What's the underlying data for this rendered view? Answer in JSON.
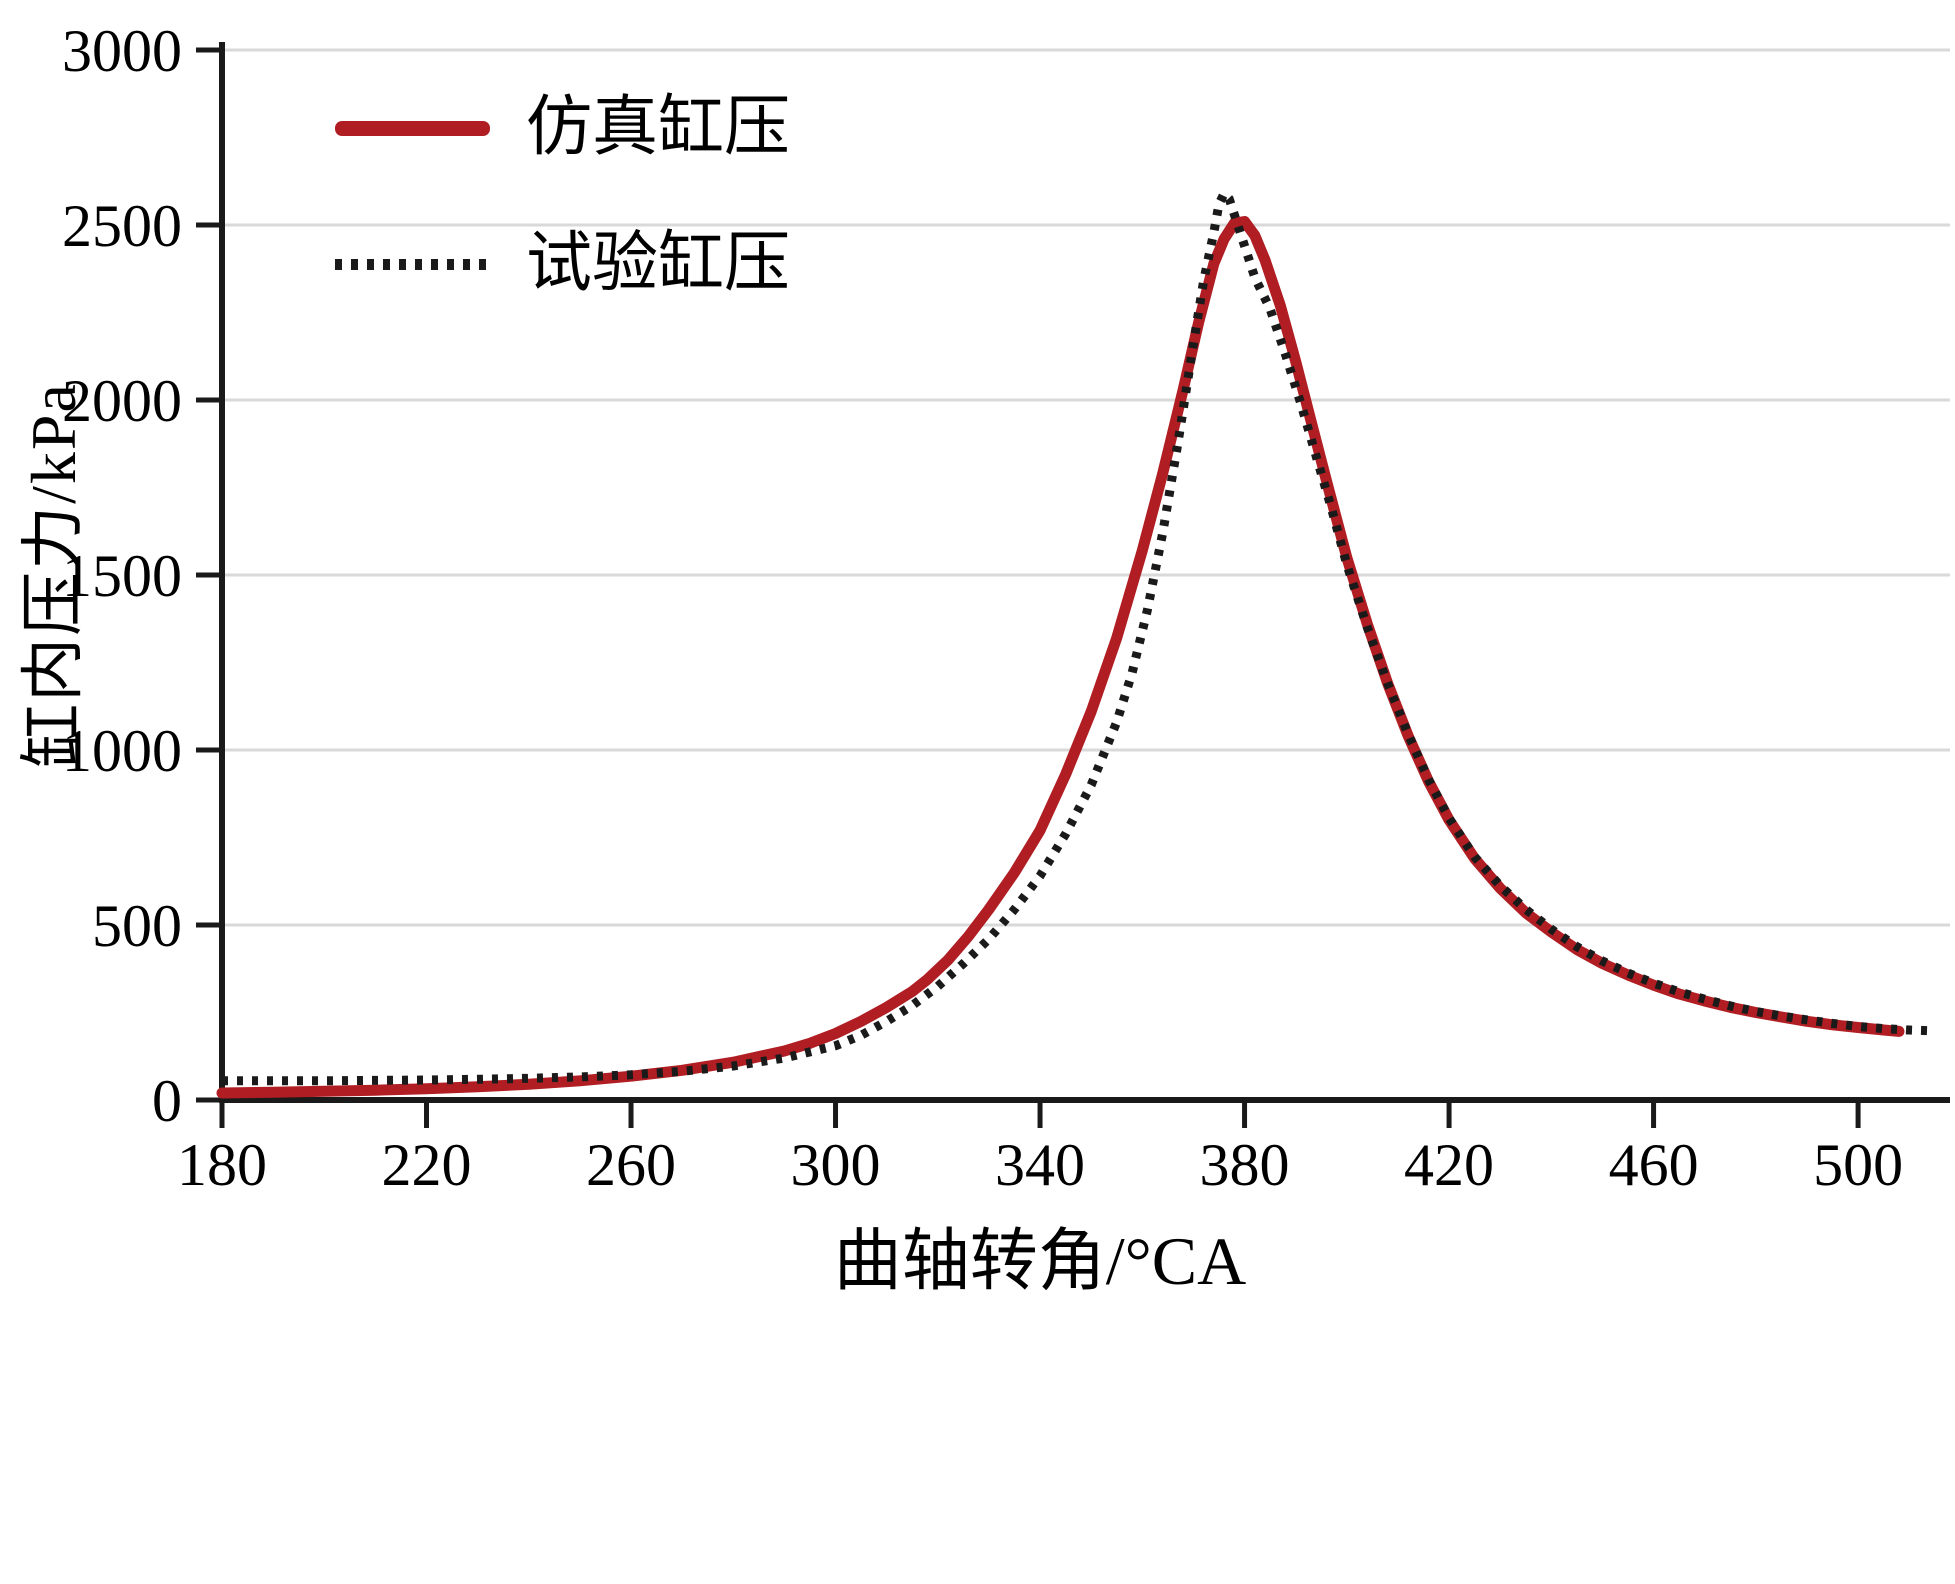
{
  "figure": {
    "background": "#ffffff"
  },
  "colors": {
    "grid": "#d9d9d9",
    "axis": "#1a1a1a",
    "text": "#000000",
    "simulated": "#b01e23",
    "experimental": "#1a1a1a"
  },
  "chart_data": {
    "type": "line",
    "title": "",
    "xlabel": "曲轴转角/°CA",
    "ylabel": "缸内压力/kPa",
    "xlim": [
      180,
      517
    ],
    "ylim": [
      0,
      3000
    ],
    "xticks": [
      180,
      220,
      260,
      300,
      340,
      380,
      420,
      460,
      500
    ],
    "yticks": [
      0,
      500,
      1000,
      1500,
      2000,
      2500,
      3000
    ],
    "grid": "horizontal",
    "legend_position": "top-left-inside",
    "series": [
      {
        "name": "仿真缸压",
        "style": "solid",
        "color": "#b01e23",
        "points": [
          [
            180,
            20
          ],
          [
            190,
            22
          ],
          [
            200,
            25
          ],
          [
            210,
            28
          ],
          [
            220,
            32
          ],
          [
            230,
            38
          ],
          [
            240,
            45
          ],
          [
            250,
            55
          ],
          [
            260,
            68
          ],
          [
            270,
            85
          ],
          [
            280,
            108
          ],
          [
            290,
            140
          ],
          [
            295,
            162
          ],
          [
            300,
            190
          ],
          [
            305,
            225
          ],
          [
            310,
            265
          ],
          [
            315,
            310
          ],
          [
            318,
            345
          ],
          [
            322,
            400
          ],
          [
            326,
            468
          ],
          [
            330,
            545
          ],
          [
            335,
            650
          ],
          [
            340,
            770
          ],
          [
            345,
            930
          ],
          [
            350,
            1110
          ],
          [
            355,
            1320
          ],
          [
            360,
            1570
          ],
          [
            364,
            1790
          ],
          [
            368,
            2030
          ],
          [
            371,
            2220
          ],
          [
            374,
            2390
          ],
          [
            376,
            2460
          ],
          [
            378,
            2505
          ],
          [
            380,
            2510
          ],
          [
            382,
            2470
          ],
          [
            384,
            2400
          ],
          [
            387,
            2270
          ],
          [
            390,
            2110
          ],
          [
            393,
            1940
          ],
          [
            396,
            1770
          ],
          [
            400,
            1550
          ],
          [
            404,
            1360
          ],
          [
            408,
            1190
          ],
          [
            412,
            1040
          ],
          [
            416,
            910
          ],
          [
            420,
            800
          ],
          [
            425,
            690
          ],
          [
            430,
            605
          ],
          [
            435,
            535
          ],
          [
            440,
            480
          ],
          [
            445,
            430
          ],
          [
            450,
            390
          ],
          [
            455,
            357
          ],
          [
            460,
            328
          ],
          [
            465,
            303
          ],
          [
            470,
            283
          ],
          [
            475,
            265
          ],
          [
            480,
            250
          ],
          [
            485,
            237
          ],
          [
            490,
            225
          ],
          [
            495,
            215
          ],
          [
            500,
            207
          ],
          [
            505,
            200
          ],
          [
            508,
            196
          ]
        ]
      },
      {
        "name": "试验缸压",
        "style": "dotted",
        "color": "#1a1a1a",
        "points": [
          [
            180,
            55
          ],
          [
            190,
            55
          ],
          [
            200,
            55
          ],
          [
            210,
            56
          ],
          [
            220,
            57
          ],
          [
            230,
            59
          ],
          [
            240,
            62
          ],
          [
            250,
            66
          ],
          [
            260,
            72
          ],
          [
            270,
            82
          ],
          [
            280,
            97
          ],
          [
            290,
            120
          ],
          [
            300,
            155
          ],
          [
            305,
            185
          ],
          [
            310,
            225
          ],
          [
            315,
            270
          ],
          [
            320,
            325
          ],
          [
            325,
            390
          ],
          [
            330,
            460
          ],
          [
            335,
            545
          ],
          [
            340,
            640
          ],
          [
            345,
            760
          ],
          [
            350,
            900
          ],
          [
            355,
            1080
          ],
          [
            358,
            1220
          ],
          [
            361,
            1400
          ],
          [
            364,
            1620
          ],
          [
            367,
            1880
          ],
          [
            370,
            2160
          ],
          [
            372,
            2340
          ],
          [
            374,
            2480
          ],
          [
            375,
            2560
          ],
          [
            376,
            2590
          ],
          [
            377,
            2575
          ],
          [
            378,
            2530
          ],
          [
            380,
            2440
          ],
          [
            382,
            2350
          ],
          [
            385,
            2260
          ],
          [
            388,
            2130
          ],
          [
            391,
            1990
          ],
          [
            394,
            1840
          ],
          [
            397,
            1690
          ],
          [
            400,
            1530
          ],
          [
            404,
            1350
          ],
          [
            408,
            1190
          ],
          [
            412,
            1045
          ],
          [
            416,
            915
          ],
          [
            420,
            805
          ],
          [
            425,
            695
          ],
          [
            430,
            612
          ],
          [
            435,
            545
          ],
          [
            440,
            488
          ],
          [
            445,
            438
          ],
          [
            450,
            397
          ],
          [
            455,
            363
          ],
          [
            460,
            334
          ],
          [
            465,
            309
          ],
          [
            470,
            288
          ],
          [
            475,
            269
          ],
          [
            480,
            253
          ],
          [
            485,
            240
          ],
          [
            490,
            229
          ],
          [
            495,
            219
          ],
          [
            500,
            210
          ],
          [
            505,
            204
          ],
          [
            510,
            200
          ],
          [
            514,
            198
          ]
        ]
      }
    ]
  }
}
